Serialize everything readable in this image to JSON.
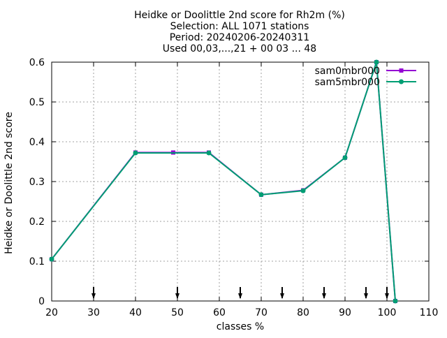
{
  "chart_data": {
    "type": "line",
    "title_lines": [
      "Heidke or Doolittle 2nd score  for Rh2m (%)",
      "Selection: ALL    1071 stations",
      "Period: 20240206-20240311",
      "Used 00,03,...,21 + 00 03 ... 48"
    ],
    "xlabel": "classes %",
    "ylabel": "Heidke or Doolittle 2nd score",
    "xlim": [
      20,
      110
    ],
    "ylim": [
      0,
      0.6
    ],
    "xticks": [
      20,
      30,
      40,
      50,
      60,
      70,
      80,
      90,
      100,
      110
    ],
    "yticks": [
      0,
      0.1,
      0.2,
      0.3,
      0.4,
      0.5,
      0.6
    ],
    "grid": true,
    "legend_position": "top-right",
    "series": [
      {
        "name": "sam0mbr000",
        "color": "#9400d3",
        "marker": "square",
        "x": [
          20,
          40,
          49,
          57.5,
          70,
          80,
          90,
          97.5,
          102
        ],
        "y": [
          0.105,
          0.373,
          0.373,
          0.373,
          0.267,
          0.278,
          0.36,
          0.6,
          0.0
        ]
      },
      {
        "name": "sam5mbr000",
        "color": "#009e73",
        "marker": "circle",
        "x": [
          20,
          40,
          57.5,
          70,
          80,
          90,
          97.5,
          102
        ],
        "y": [
          0.105,
          0.372,
          0.372,
          0.267,
          0.277,
          0.36,
          0.6,
          0.0
        ]
      }
    ],
    "arrow_markers_x": [
      30,
      50,
      65,
      75,
      85,
      95,
      100
    ]
  }
}
